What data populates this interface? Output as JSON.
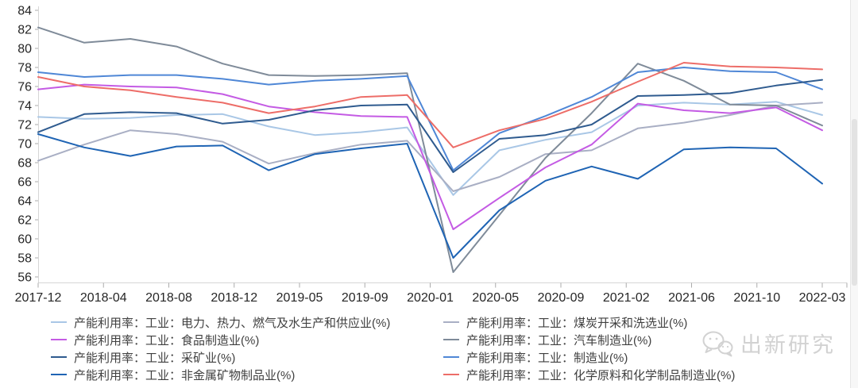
{
  "chart_data": {
    "type": "line",
    "title": "",
    "grid": false,
    "legend_position": "bottom",
    "y_axis": {
      "min": 56,
      "max": 84,
      "step": 2
    },
    "x_tick_labels": [
      "2017-12",
      "2018-04",
      "2018-08",
      "2018-12",
      "2019-05",
      "2019-09",
      "2020-01",
      "2020-05",
      "2020-09",
      "2021-02",
      "2021-06",
      "2021-10",
      "2022-03"
    ],
    "n_points": 18,
    "series": [
      {
        "key": "power-utilities",
        "label": "产能利用率：工业：电力、热力、燃气及水生产和供应业(%)",
        "color": "#A9C7E6",
        "values": [
          72.8,
          72.6,
          72.7,
          73.0,
          73.1,
          71.8,
          70.9,
          71.2,
          71.7,
          64.6,
          69.3,
          70.4,
          71.2,
          74.0,
          74.3,
          74.1,
          74.4,
          73.0
        ]
      },
      {
        "key": "food-manufacturing",
        "label": "产能利用率：工业：食品制造业(%)",
        "color": "#C45BE4",
        "values": [
          75.7,
          76.2,
          76.0,
          75.9,
          75.2,
          73.9,
          73.3,
          72.9,
          72.8,
          61.0,
          64.3,
          67.5,
          69.9,
          74.2,
          73.5,
          73.2,
          73.8,
          71.4
        ]
      },
      {
        "key": "mining",
        "label": "产能利用率：工业：采矿业(%)",
        "color": "#2F5B8F",
        "values": [
          71.2,
          73.1,
          73.3,
          73.2,
          72.1,
          72.5,
          73.5,
          74.0,
          74.1,
          67.0,
          70.5,
          70.9,
          72.0,
          75.0,
          75.1,
          75.3,
          76.1,
          76.7
        ]
      },
      {
        "key": "nonmetal-mineral-products",
        "label": "产能利用率：工业：非金属矿物制品业(%)",
        "color": "#1F64B4",
        "values": [
          71.0,
          69.6,
          68.7,
          69.7,
          69.8,
          67.2,
          68.9,
          69.5,
          70.0,
          58.0,
          63.0,
          66.1,
          67.6,
          66.3,
          69.4,
          69.6,
          69.5,
          65.8
        ]
      },
      {
        "key": "coal-mining-washing",
        "label": "产能利用率：工业：煤炭开采和洗选业(%)",
        "color": "#A9AFC4",
        "values": [
          68.2,
          69.9,
          71.4,
          71.0,
          70.2,
          67.9,
          69.0,
          69.9,
          70.3,
          65.0,
          66.5,
          68.9,
          69.3,
          71.6,
          72.2,
          73.0,
          74.0,
          74.3
        ]
      },
      {
        "key": "auto-manufacturing",
        "label": "产能利用率：工业：汽车制造业(%)",
        "color": "#7F8B99",
        "values": [
          82.2,
          80.6,
          81.0,
          80.2,
          78.4,
          77.2,
          77.1,
          77.2,
          77.4,
          56.5,
          62.5,
          68.5,
          73.2,
          78.4,
          76.6,
          74.1,
          74.0,
          71.9
        ]
      },
      {
        "key": "manufacturing",
        "label": "产能利用率：工业：制造业(%)",
        "color": "#4F87D6",
        "values": [
          77.5,
          77.0,
          77.2,
          77.2,
          76.8,
          76.2,
          76.6,
          76.8,
          77.1,
          67.2,
          71.1,
          72.9,
          74.9,
          77.5,
          78.0,
          77.6,
          77.5,
          75.7
        ]
      },
      {
        "key": "chemical-products",
        "label": "产能利用率：工业：化学原料和化学制品制造业(%)",
        "color": "#ED6D68",
        "values": [
          77.0,
          76.0,
          75.6,
          74.9,
          74.3,
          73.2,
          73.9,
          74.9,
          75.1,
          69.6,
          71.4,
          72.6,
          74.4,
          76.5,
          78.5,
          78.1,
          78.0,
          77.8
        ]
      }
    ],
    "legend_columns": [
      [
        "power-utilities",
        "food-manufacturing",
        "mining",
        "nonmetal-mineral-products"
      ],
      [
        "coal-mining-washing",
        "auto-manufacturing",
        "manufacturing",
        "chemical-products"
      ]
    ],
    "axis_colors": {
      "line": "#d6d6d6",
      "tick": "#ababab",
      "label": "#262626"
    }
  },
  "watermark": {
    "text": "出新研究"
  }
}
